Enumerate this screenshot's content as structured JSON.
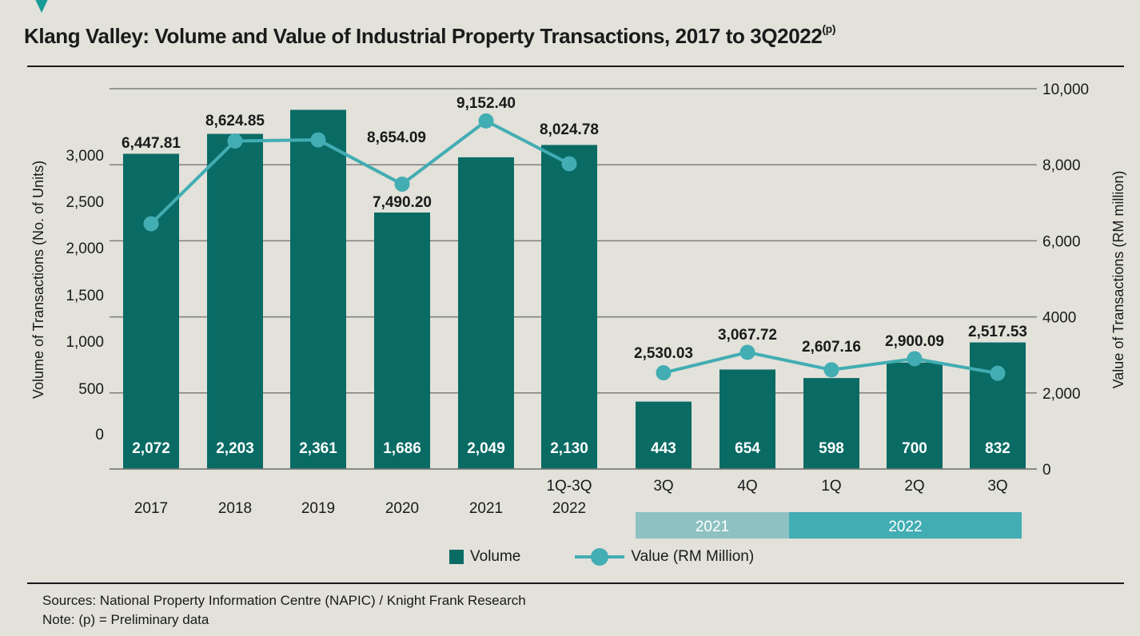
{
  "header": {
    "title": "Klang Valley: Volume and Value of Industrial Property Transactions, 2017 to 3Q2022",
    "title_superscript": "(p)"
  },
  "footer": {
    "sources": "Sources: National Property Information Centre (NAPIC) / Knight Frank Research",
    "note": "Note: (p) = Preliminary data"
  },
  "legend": {
    "volume": "Volume",
    "value": "Value (RM Million)"
  },
  "colors": {
    "volume_bar": "#0a6b65",
    "value_line": "#42adb3",
    "group_2021": "#8ec1c2",
    "group_2022": "#42adb3",
    "marker": "#159b95"
  },
  "chart_data": {
    "type": "bar+line",
    "title": "Klang Valley: Volume and Value of Industrial Property Transactions, 2017 to 3Q2022(p)",
    "categories": [
      "2017",
      "2018",
      "2019",
      "2020",
      "2021",
      "1Q-3Q 2022",
      "3Q 2021",
      "4Q 2021",
      "1Q 2022",
      "2Q 2022",
      "3Q 2022"
    ],
    "category_labels": [
      [
        "2017"
      ],
      [
        "2018"
      ],
      [
        "2019"
      ],
      [
        "2020"
      ],
      [
        "2021"
      ],
      [
        "1Q-3Q",
        "2022"
      ],
      [
        "3Q"
      ],
      [
        "4Q"
      ],
      [
        "1Q"
      ],
      [
        "2Q"
      ],
      [
        "3Q"
      ]
    ],
    "category_groups": [
      {
        "label": "2021",
        "from": 6,
        "to": 7
      },
      {
        "label": "2022",
        "from": 8,
        "to": 10
      }
    ],
    "series": [
      {
        "name": "Volume",
        "type": "bar",
        "axis": "left",
        "values": [
          2072,
          2203,
          2361,
          1686,
          2049,
          2130,
          443,
          654,
          598,
          700,
          832
        ],
        "labels": [
          "2,072",
          "2,203",
          "2,361",
          "1,686",
          "2,049",
          "2,130",
          "443",
          "654",
          "598",
          "700",
          "832"
        ]
      },
      {
        "name": "Value (RM Million)",
        "type": "line",
        "axis": "right",
        "values": [
          6447.81,
          8624.85,
          8654.09,
          7490.2,
          9152.4,
          8024.78,
          2530.03,
          3067.72,
          2607.16,
          2900.09,
          2517.53
        ],
        "labels": [
          "6,447.81",
          "8,624.85",
          "8,654.09",
          "7,490.20",
          "9,152.40",
          "8,024.78",
          "2,530.03",
          "3,067.72",
          "2,607.16",
          "2,900.09",
          "2,517.53"
        ]
      }
    ],
    "ylabel_left": "Volume of Transactions (No. of Units)",
    "ylabel_right": "Value of Transactions (RM million)",
    "yticks_left": [
      "3,000",
      "2,500",
      "2,000",
      "1,500",
      "1,000",
      "500",
      "0"
    ],
    "yticks_right": [
      "10,000",
      "8,000",
      "6,000",
      "4000",
      "2,000",
      "0"
    ],
    "ylim_left": [
      0,
      2500
    ],
    "ylim_right": [
      0,
      10000
    ],
    "grid": true,
    "legend_position": "bottom-center"
  }
}
